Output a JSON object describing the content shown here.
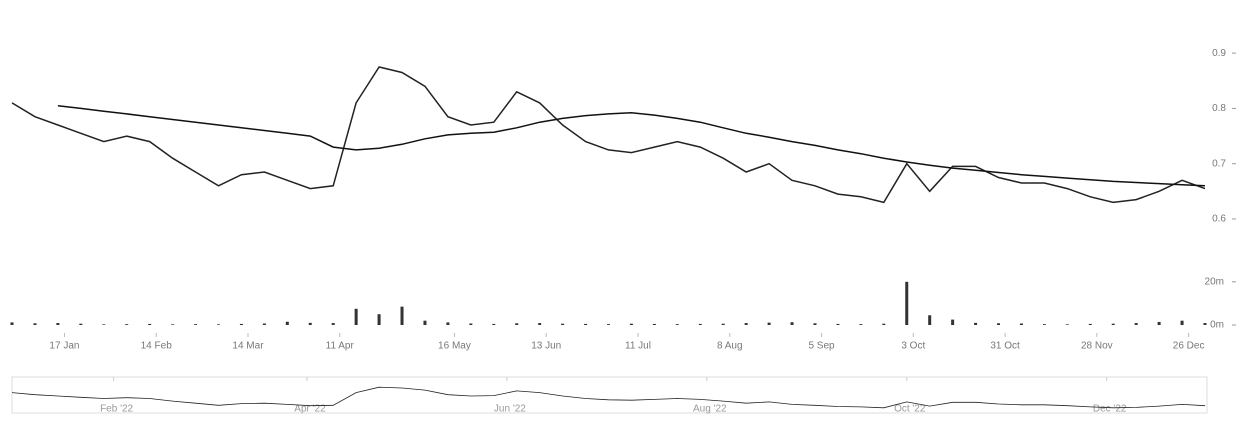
{
  "chart_data": {
    "type": "line",
    "x": [
      "2022-01-01",
      "2022-01-08",
      "2022-01-15",
      "2022-01-22",
      "2022-01-29",
      "2022-02-05",
      "2022-02-12",
      "2022-02-19",
      "2022-02-26",
      "2022-03-05",
      "2022-03-12",
      "2022-03-19",
      "2022-03-26",
      "2022-04-02",
      "2022-04-09",
      "2022-04-16",
      "2022-04-23",
      "2022-04-30",
      "2022-05-07",
      "2022-05-14",
      "2022-05-21",
      "2022-05-28",
      "2022-06-04",
      "2022-06-11",
      "2022-06-18",
      "2022-06-25",
      "2022-07-02",
      "2022-07-09",
      "2022-07-16",
      "2022-07-23",
      "2022-07-30",
      "2022-08-06",
      "2022-08-13",
      "2022-08-20",
      "2022-08-27",
      "2022-09-03",
      "2022-09-10",
      "2022-09-17",
      "2022-09-24",
      "2022-10-01",
      "2022-10-08",
      "2022-10-15",
      "2022-10-22",
      "2022-10-29",
      "2022-11-05",
      "2022-11-12",
      "2022-11-19",
      "2022-11-26",
      "2022-12-03",
      "2022-12-10",
      "2022-12-17",
      "2022-12-24",
      "2022-12-31"
    ],
    "series": [
      {
        "color": "#222222",
        "values": [
          0.81,
          0.785,
          0.77,
          0.755,
          0.74,
          0.75,
          0.74,
          0.71,
          0.685,
          0.66,
          0.68,
          0.685,
          0.67,
          0.655,
          0.66,
          0.81,
          0.875,
          0.865,
          0.84,
          0.785,
          0.77,
          0.775,
          0.83,
          0.81,
          0.77,
          0.74,
          0.725,
          0.72,
          0.73,
          0.74,
          0.73,
          0.71,
          0.685,
          0.7,
          0.67,
          0.66,
          0.645,
          0.64,
          0.63,
          0.7,
          0.65,
          0.695,
          0.695,
          0.675,
          0.665,
          0.665,
          0.655,
          0.64,
          0.63,
          0.635,
          0.65,
          0.67,
          0.655
        ]
      },
      {
        "color": "#111111",
        "values": [
          null,
          null,
          0.805,
          0.8,
          0.795,
          0.79,
          0.785,
          0.78,
          0.775,
          0.77,
          0.765,
          0.76,
          0.755,
          0.75,
          0.73,
          0.725,
          0.728,
          0.735,
          0.745,
          0.752,
          0.755,
          0.757,
          0.765,
          0.775,
          0.782,
          0.787,
          0.79,
          0.792,
          0.788,
          0.782,
          0.775,
          0.765,
          0.755,
          0.748,
          0.74,
          0.733,
          0.725,
          0.718,
          0.71,
          0.703,
          0.697,
          0.692,
          0.688,
          0.684,
          0.68,
          0.677,
          0.674,
          0.671,
          0.668,
          0.666,
          0.664,
          0.662,
          0.66
        ]
      }
    ],
    "xlim": [
      "2022-01-01",
      "2022-12-31"
    ],
    "ylim": [
      0.58,
      0.96
    ],
    "yticks": [
      0.6,
      0.7,
      0.8,
      0.9
    ],
    "xticks": [
      {
        "value": "2022-01-17",
        "label": "17 Jan"
      },
      {
        "value": "2022-02-14",
        "label": "14 Feb"
      },
      {
        "value": "2022-03-14",
        "label": "14 Mar"
      },
      {
        "value": "2022-04-11",
        "label": "11 Apr"
      },
      {
        "value": "2022-05-16",
        "label": "16 May"
      },
      {
        "value": "2022-06-13",
        "label": "13 Jun"
      },
      {
        "value": "2022-07-11",
        "label": "11 Jul"
      },
      {
        "value": "2022-08-08",
        "label": "8 Aug"
      },
      {
        "value": "2022-09-05",
        "label": "5 Sep"
      },
      {
        "value": "2022-10-03",
        "label": "3 Oct"
      },
      {
        "value": "2022-10-31",
        "label": "31 Oct"
      },
      {
        "value": "2022-11-28",
        "label": "28 Nov"
      },
      {
        "value": "2022-12-26",
        "label": "26 Dec"
      }
    ],
    "volume": {
      "type": "bar",
      "color": "#333333",
      "values": [
        1200000,
        800000,
        900000,
        600000,
        300000,
        400000,
        500000,
        300000,
        400000,
        300000,
        500000,
        700000,
        1500000,
        1000000,
        900000,
        7500000,
        5000000,
        8500000,
        2000000,
        1200000,
        700000,
        500000,
        800000,
        900000,
        600000,
        500000,
        400000,
        600000,
        500000,
        400000,
        500000,
        600000,
        900000,
        1100000,
        1300000,
        800000,
        500000,
        400000,
        600000,
        20000000,
        4500000,
        2500000,
        1000000,
        800000,
        700000,
        400000,
        300000,
        500000,
        600000,
        900000,
        1400000,
        2000000,
        900000
      ],
      "ylim": [
        0,
        25000000
      ],
      "yticks": [
        {
          "value": 0,
          "label": "0m"
        },
        {
          "value": 20000000,
          "label": "20m"
        }
      ]
    },
    "navigator_xticks": [
      {
        "value": "2022-02-01",
        "label": "Feb '22"
      },
      {
        "value": "2022-04-01",
        "label": "Apr '22"
      },
      {
        "value": "2022-06-01",
        "label": "Jun '22"
      },
      {
        "value": "2022-08-01",
        "label": "Aug '22"
      },
      {
        "value": "2022-10-01",
        "label": "Oct '22"
      },
      {
        "value": "2022-12-01",
        "label": "Dec '22"
      }
    ]
  }
}
